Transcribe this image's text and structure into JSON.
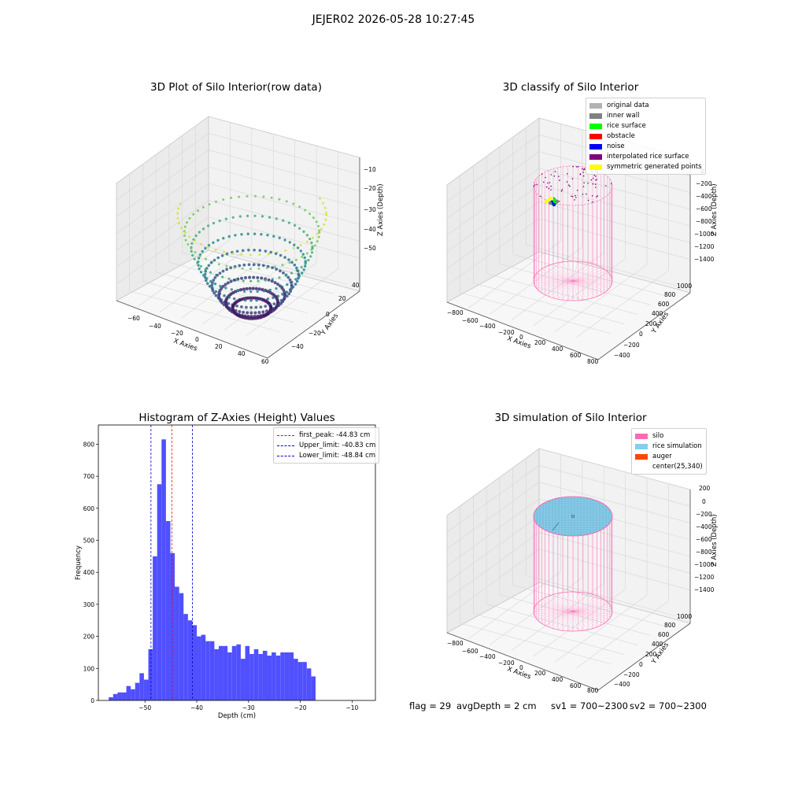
{
  "suptitle": "JEJER02 2026-05-28 10:27:45",
  "colors": {
    "original_data": "#b3b3b3",
    "inner_wall": "#808080",
    "rice_surface": "#00ff00",
    "obstacle": "#ff0000",
    "noise": "#0000ff",
    "interpolated_rice_surface": "#800080",
    "symmetric_generated_points": "#ffff00",
    "silo": "#ff69b4",
    "rice_simulation": "#87ceeb",
    "auger": "#ff4500",
    "hist_bars": "#5050ff",
    "first_peak_line": "#ff0000",
    "limit_lines": "#0000cc"
  },
  "chart_data": [
    {
      "type": "scatter",
      "projection": "3d",
      "title": "3D Plot of Silo Interior(row data)",
      "xlabel": "X Axies",
      "ylabel": "Y Axies",
      "zlabel": "Z Axies (Depth)",
      "x_ticks": [
        "−60",
        "−40",
        "−20",
        "0",
        "20",
        "40",
        "60"
      ],
      "y_ticks": [
        "−40",
        "−20",
        "0",
        "20",
        "40"
      ],
      "z_ticks": [
        "−10",
        "−20",
        "−30",
        "−40",
        "−50"
      ],
      "xlim": [
        -70,
        60
      ],
      "ylim": [
        -50,
        50
      ],
      "zlim": [
        -58,
        -5
      ],
      "colormap": "viridis",
      "grid": true
    },
    {
      "type": "scatter",
      "projection": "3d",
      "title": "3D classify of Silo Interior",
      "xlabel": "X Axies",
      "ylabel": "Y Axies",
      "zlabel": "Z Axies (Depth)",
      "x_ticks": [
        "−800",
        "−600",
        "−400",
        "−200",
        "0",
        "200",
        "400",
        "600",
        "800"
      ],
      "y_ticks": [
        "−400",
        "−200",
        "0",
        "200",
        "400",
        "600",
        "800",
        "1000"
      ],
      "z_ticks": [
        "0",
        "−200",
        "−400",
        "−600",
        "−800",
        "−1000",
        "−1200",
        "−1400"
      ],
      "legend": [
        "original data",
        "inner wall",
        "rice surface",
        "obstacle",
        "noise",
        "interpolated rice surface",
        "symmetric generated points"
      ],
      "legend_position": "top-right",
      "grid": true
    },
    {
      "type": "bar",
      "title": "Histogram of Z-Axies (Height) Values",
      "xlabel": "Depth (cm)",
      "ylabel": "Frequency",
      "x_ticks": [
        "−50",
        "−40",
        "−30",
        "−20",
        "−10"
      ],
      "y_ticks": [
        "0",
        "100",
        "200",
        "300",
        "400",
        "500",
        "600",
        "700",
        "800"
      ],
      "xlim": [
        -59,
        -5.5
      ],
      "ylim": [
        0,
        860
      ],
      "bin_start": -57,
      "bin_width": 0.85,
      "values": [
        10,
        20,
        25,
        25,
        45,
        35,
        55,
        85,
        65,
        160,
        450,
        675,
        815,
        560,
        460,
        355,
        335,
        270,
        250,
        235,
        200,
        205,
        185,
        185,
        160,
        170,
        170,
        150,
        170,
        175,
        130,
        170,
        145,
        160,
        145,
        155,
        140,
        150,
        140,
        150,
        150,
        150,
        130,
        120,
        120,
        100,
        75
      ],
      "first_peak": -44.83,
      "upper_limit": -40.83,
      "lower_limit": -48.84,
      "legend": [
        "first_peak: -44.83 cm",
        "Upper_limit: -40.83 cm",
        "Lower_limit: -48.84 cm"
      ],
      "legend_position": "top-right",
      "grid": false
    },
    {
      "type": "scatter",
      "projection": "3d",
      "title": "3D simulation of Silo Interior",
      "xlabel": "X Axies",
      "ylabel": "Y Axies",
      "zlabel": "Z Axies (Depth)",
      "x_ticks": [
        "−800",
        "−600",
        "−400",
        "−200",
        "0",
        "200",
        "400",
        "600",
        "800"
      ],
      "y_ticks": [
        "−400",
        "−200",
        "0",
        "200",
        "400",
        "600",
        "800",
        "1000"
      ],
      "z_ticks": [
        "200",
        "0",
        "−200",
        "−400",
        "−600",
        "−800",
        "−1000",
        "−1200",
        "−1400"
      ],
      "legend": [
        "silo",
        "rice simulation",
        "auger",
        "center(25,340)"
      ],
      "legend_position": "top-right",
      "grid": true
    }
  ],
  "footer": {
    "flag": "flag = 29",
    "avg_depth": "avgDepth = 2 cm",
    "sv1": "sv1 = 700~2300",
    "sv2": "sv2 = 700~2300"
  }
}
